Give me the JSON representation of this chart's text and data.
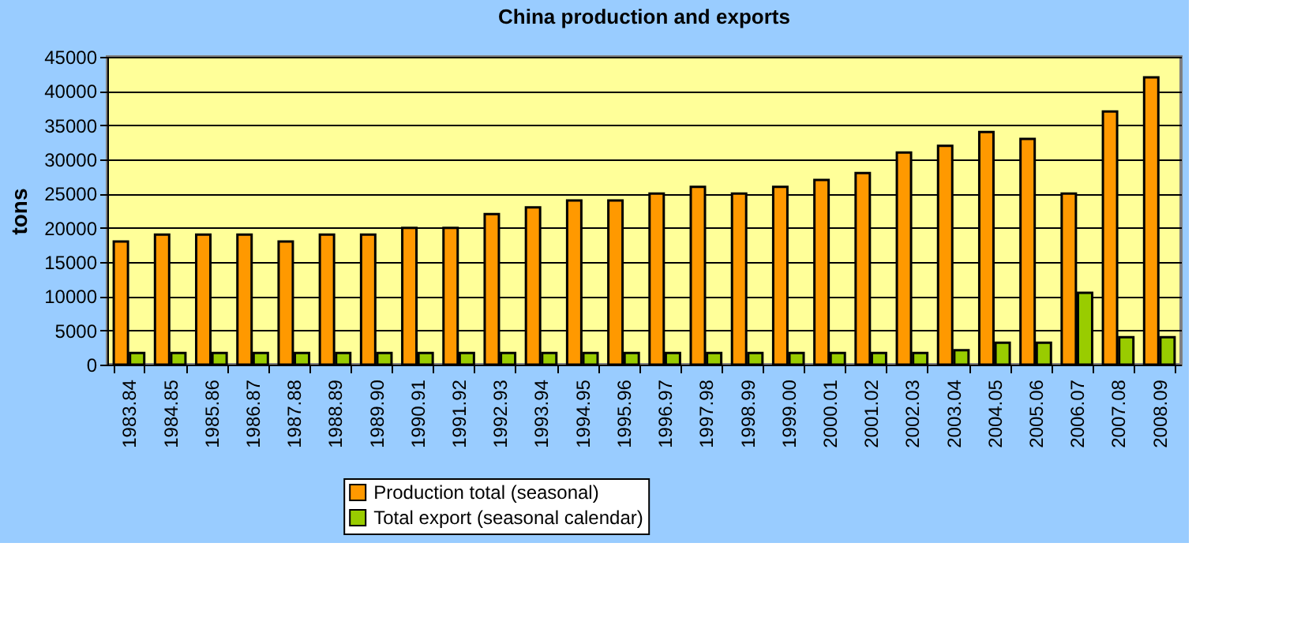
{
  "chart_data": {
    "type": "bar",
    "title": "China production and exports",
    "ylabel": "tons",
    "categories": [
      "1983.84",
      "1984.85",
      "1985.86",
      "1986.87",
      "1987.88",
      "1988.89",
      "1989.90",
      "1990.91",
      "1991.92",
      "1992.93",
      "1993.94",
      "1994.95",
      "1995.96",
      "1996.97",
      "1997.98",
      "1998.99",
      "1999.00",
      "2000.01",
      "2001.02",
      "2002.03",
      "2003.04",
      "2004.05",
      "2005.06",
      "2006.07",
      "2007.08",
      "2008.09"
    ],
    "series": [
      {
        "name": "Production total (seasonal)",
        "color": "#ff9900",
        "values": [
          18000,
          19000,
          19000,
          19000,
          18000,
          19000,
          19000,
          20000,
          20000,
          22000,
          23000,
          24000,
          24000,
          25000,
          26000,
          25000,
          26000,
          27000,
          28000,
          31000,
          32000,
          34000,
          33000,
          25000,
          37000,
          42000
        ]
      },
      {
        "name": "Total export (seasonal calendar)",
        "color": "#99cc00",
        "values": [
          1700,
          1700,
          1700,
          1700,
          1700,
          1700,
          1700,
          1700,
          1700,
          1700,
          1700,
          1700,
          1700,
          1700,
          1700,
          1700,
          1700,
          1700,
          1700,
          1700,
          2100,
          3200,
          3200,
          10500,
          4000,
          4000
        ]
      }
    ],
    "ylim": [
      0,
      45000
    ],
    "yticks": [
      0,
      5000,
      10000,
      15000,
      20000,
      25000,
      30000,
      35000,
      40000,
      45000
    ],
    "grid": "y",
    "legend": "bottom"
  }
}
